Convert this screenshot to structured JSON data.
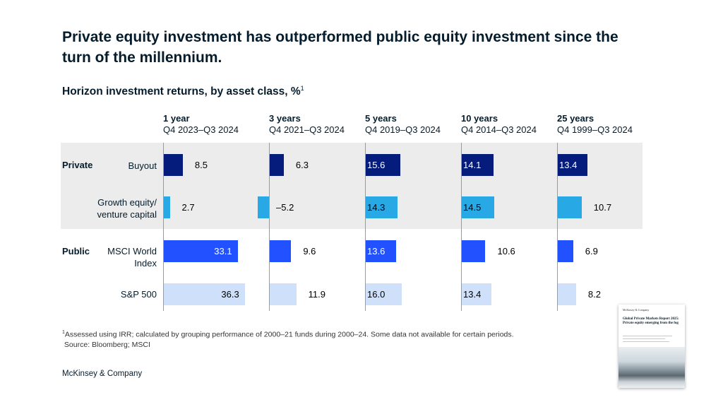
{
  "title": "Private equity investment has outperformed public equity investment since the turn of the millennium.",
  "subtitle": "Horizon investment returns, by asset class, %",
  "subtitle_footnote_marker": "1",
  "footnote": {
    "marker": "1",
    "text": "Assessed using IRR; calculated by grouping performance of 2000–21 funds during 2000–24. Some data not available for certain periods.",
    "source": "Source: Bloomberg; MSCI"
  },
  "brand": "McKinsey & Company",
  "report_thumbnail": {
    "brand": "McKinsey & Company",
    "title": "Global Private Markets Report 2025: Private equity emerging from the fog"
  },
  "colors": {
    "buyout": "#051c7c",
    "growth": "#29a8e6",
    "msci": "#2251ff",
    "sp500": "#cfe0fb",
    "band": "#ececec"
  },
  "chart_data": {
    "type": "bar",
    "orientation": "horizontal",
    "groups": [
      {
        "label": "Private",
        "rows": [
          "Buyout",
          "Growth equity/ venture capital"
        ]
      },
      {
        "label": "Public",
        "rows": [
          "MSCI World Index",
          "S&P 500"
        ]
      }
    ],
    "row_labels": [
      "Buyout",
      "Growth equity/\nventure capital",
      "MSCI World\nIndex",
      "S&P 500"
    ],
    "columns": [
      {
        "horizon": "1 year",
        "period": "Q4 2023–Q3 2024",
        "values": [
          8.5,
          2.7,
          33.1,
          36.3
        ]
      },
      {
        "horizon": "3 years",
        "period": "Q4 2021–Q3 2024",
        "values": [
          6.3,
          -5.2,
          9.6,
          11.9
        ]
      },
      {
        "horizon": "5 years",
        "period": "Q4 2019–Q3 2024",
        "values": [
          15.6,
          14.3,
          13.6,
          16.0
        ]
      },
      {
        "horizon": "10 years",
        "period": "Q4 2014–Q3 2024",
        "values": [
          14.1,
          14.5,
          10.6,
          13.4
        ]
      },
      {
        "horizon": "25 years",
        "period": "Q4 1999–Q3 2024",
        "values": [
          13.4,
          10.7,
          6.9,
          8.2
        ]
      }
    ],
    "value_labels": [
      [
        "8.5",
        "2.7",
        "33.1",
        "36.3"
      ],
      [
        "6.3",
        "–5.2",
        "9.6",
        "11.9"
      ],
      [
        "15.6",
        "14.3",
        "13.6",
        "16.0"
      ],
      [
        "14.1",
        "14.5",
        "10.6",
        "13.4"
      ],
      [
        "13.4",
        "10.7",
        "6.9",
        "8.2"
      ]
    ],
    "series": [
      {
        "name": "Buyout",
        "color": "#051c7c"
      },
      {
        "name": "Growth equity/venture capital",
        "color": "#29a8e6"
      },
      {
        "name": "MSCI World Index",
        "color": "#2251ff"
      },
      {
        "name": "S&P 500",
        "color": "#cfe0fb"
      }
    ],
    "unit": "%"
  }
}
